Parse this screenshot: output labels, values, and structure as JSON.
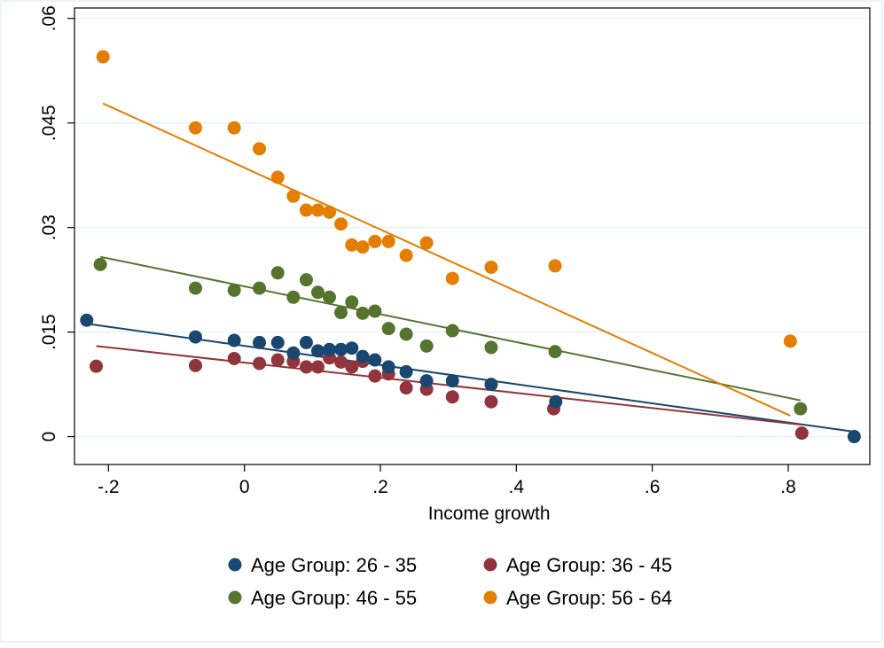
{
  "chart_data": {
    "type": "scatter",
    "title": "",
    "xlabel": "Income growth",
    "ylabel": "",
    "xlim": [
      -0.25,
      0.92
    ],
    "ylim": [
      -0.004,
      0.0615
    ],
    "x_ticks": [
      -0.2,
      0,
      0.2,
      0.4,
      0.6,
      0.8
    ],
    "x_tick_labels": [
      "-.2",
      "0",
      ".2",
      ".4",
      ".6",
      ".8"
    ],
    "y_ticks": [
      0,
      0.015,
      0.03,
      0.045,
      0.06
    ],
    "y_tick_labels": [
      "0",
      ".015",
      ".03",
      ".045",
      ".06"
    ],
    "grid": "horizontal",
    "legend_position": "bottom",
    "series": [
      {
        "name": "Age Group: 26 - 35",
        "color": "#1a476f",
        "points": [
          [
            -0.232,
            0.0167
          ],
          [
            -0.072,
            0.0143
          ],
          [
            -0.015,
            0.0138
          ],
          [
            0.022,
            0.0135
          ],
          [
            0.049,
            0.0135
          ],
          [
            0.072,
            0.012
          ],
          [
            0.091,
            0.0135
          ],
          [
            0.108,
            0.0123
          ],
          [
            0.125,
            0.0125
          ],
          [
            0.142,
            0.0125
          ],
          [
            0.158,
            0.0127
          ],
          [
            0.174,
            0.0115
          ],
          [
            0.192,
            0.011
          ],
          [
            0.212,
            0.01
          ],
          [
            0.238,
            0.0093
          ],
          [
            0.268,
            0.008
          ],
          [
            0.306,
            0.008
          ],
          [
            0.363,
            0.0075
          ],
          [
            0.458,
            0.005
          ],
          [
            0.897,
            0.0
          ]
        ],
        "fit": [
          [
            -0.232,
            0.0162
          ],
          [
            0.897,
            0.0007
          ]
        ]
      },
      {
        "name": "Age Group: 36 - 45",
        "color": "#90353b",
        "points": [
          [
            -0.218,
            0.0101
          ],
          [
            -0.072,
            0.0102
          ],
          [
            -0.015,
            0.0112
          ],
          [
            0.022,
            0.0105
          ],
          [
            0.049,
            0.011
          ],
          [
            0.072,
            0.0108
          ],
          [
            0.091,
            0.01
          ],
          [
            0.108,
            0.01
          ],
          [
            0.125,
            0.0113
          ],
          [
            0.142,
            0.0107
          ],
          [
            0.158,
            0.01
          ],
          [
            0.174,
            0.0108
          ],
          [
            0.192,
            0.0087
          ],
          [
            0.212,
            0.009
          ],
          [
            0.238,
            0.007
          ],
          [
            0.268,
            0.0068
          ],
          [
            0.306,
            0.0057
          ],
          [
            0.363,
            0.005
          ],
          [
            0.455,
            0.004
          ],
          [
            0.82,
            0.0005
          ]
        ],
        "fit": [
          [
            -0.218,
            0.013
          ],
          [
            0.82,
            0.0017
          ]
        ]
      },
      {
        "name": "Age Group: 46 - 55",
        "color": "#55752f",
        "points": [
          [
            -0.212,
            0.0247
          ],
          [
            -0.072,
            0.0213
          ],
          [
            -0.015,
            0.021
          ],
          [
            0.022,
            0.0213
          ],
          [
            0.049,
            0.0235
          ],
          [
            0.072,
            0.02
          ],
          [
            0.091,
            0.0225
          ],
          [
            0.108,
            0.0207
          ],
          [
            0.125,
            0.02
          ],
          [
            0.142,
            0.0178
          ],
          [
            0.158,
            0.0193
          ],
          [
            0.174,
            0.0177
          ],
          [
            0.192,
            0.018
          ],
          [
            0.212,
            0.0155
          ],
          [
            0.238,
            0.0147
          ],
          [
            0.268,
            0.013
          ],
          [
            0.306,
            0.0152
          ],
          [
            0.363,
            0.0128
          ],
          [
            0.457,
            0.0122
          ],
          [
            0.818,
            0.004
          ]
        ],
        "fit": [
          [
            -0.212,
            0.0258
          ],
          [
            0.818,
            0.0052
          ]
        ]
      },
      {
        "name": "Age Group: 56 - 64",
        "color": "#e37e00",
        "points": [
          [
            -0.208,
            0.0545
          ],
          [
            -0.072,
            0.0443
          ],
          [
            -0.015,
            0.0443
          ],
          [
            0.022,
            0.0413
          ],
          [
            0.049,
            0.0372
          ],
          [
            0.072,
            0.0345
          ],
          [
            0.091,
            0.0325
          ],
          [
            0.108,
            0.0325
          ],
          [
            0.125,
            0.0322
          ],
          [
            0.142,
            0.0305
          ],
          [
            0.158,
            0.0275
          ],
          [
            0.174,
            0.0272
          ],
          [
            0.192,
            0.028
          ],
          [
            0.212,
            0.028
          ],
          [
            0.238,
            0.026
          ],
          [
            0.268,
            0.0278
          ],
          [
            0.306,
            0.0227
          ],
          [
            0.363,
            0.0243
          ],
          [
            0.457,
            0.0245
          ],
          [
            0.803,
            0.0137
          ]
        ],
        "fit": [
          [
            -0.208,
            0.0478
          ],
          [
            0.803,
            0.003
          ]
        ]
      }
    ]
  }
}
